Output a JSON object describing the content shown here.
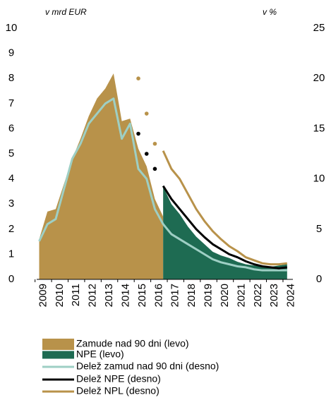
{
  "chart_data": {
    "type": "area-line",
    "y_label": "v mrd EUR",
    "y2_label": "v %",
    "x": [
      2008.75,
      2009.25,
      2009.75,
      2010.25,
      2010.75,
      2011.25,
      2011.75,
      2012.25,
      2012.75,
      2013.25,
      2013.75,
      2014.25,
      2014.75,
      2015.25,
      2015.75,
      2016.25,
      2016.75,
      2017.25,
      2017.75,
      2018.25,
      2018.75,
      2019.25,
      2019.75,
      2020.25,
      2020.75,
      2021.25,
      2021.75,
      2022.25,
      2022.75,
      2023.25,
      2023.75
    ],
    "xlim": [
      2008.6,
      2024.1
    ],
    "xticks": [
      2009,
      2010,
      2011,
      2012,
      2013,
      2014,
      2015,
      2016,
      2017,
      2018,
      2019,
      2020,
      2021,
      2022,
      2023,
      2024
    ],
    "ylim": [
      0,
      10
    ],
    "yticks": [
      0,
      1,
      2,
      3,
      4,
      5,
      6,
      7,
      8,
      9,
      10
    ],
    "y2lim": [
      0,
      25
    ],
    "y2ticks": [
      0,
      5,
      10,
      15,
      20,
      25
    ],
    "grid": false,
    "series": [
      {
        "name": "Zamude nad 90 dni (levo)",
        "kind": "area",
        "color": "#b8924a",
        "values": [
          1.6,
          2.7,
          2.8,
          3.8,
          4.8,
          5.6,
          6.5,
          7.2,
          7.6,
          8.2,
          6.3,
          6.4,
          5.2,
          4.5,
          3.2,
          2.5,
          null,
          null,
          null,
          null,
          null,
          null,
          null,
          null,
          null,
          null,
          null,
          null,
          null,
          null,
          null
        ]
      },
      {
        "name": "NPE (levo)",
        "kind": "area",
        "color": "#1e6b52",
        "values": [
          null,
          null,
          null,
          null,
          null,
          null,
          null,
          null,
          null,
          null,
          null,
          null,
          null,
          null,
          null,
          3.7,
          3.0,
          2.6,
          2.1,
          1.7,
          1.4,
          1.1,
          0.95,
          0.85,
          0.7,
          0.6,
          0.55,
          0.5,
          0.5,
          0.55,
          0.6
        ]
      },
      {
        "name": "Delež zamud nad 90 dni (desno)",
        "kind": "line",
        "axis": "y2",
        "color": "#9ecfc4",
        "values": [
          3.8,
          5.5,
          6.0,
          9.0,
          12.0,
          13.5,
          15.5,
          16.5,
          17.5,
          18.0,
          14.0,
          15.5,
          11.0,
          10.0,
          7.0,
          5.5,
          4.5,
          4.0,
          3.5,
          3.0,
          2.5,
          2.0,
          1.7,
          1.5,
          1.3,
          1.2,
          1.0,
          0.9,
          0.9,
          0.9,
          0.9
        ]
      },
      {
        "name": "Delež NPE (desno)",
        "kind": "line",
        "axis": "y2",
        "color": "#000000",
        "dotted_until": 2015.75,
        "values": [
          null,
          null,
          null,
          null,
          null,
          null,
          null,
          null,
          null,
          null,
          null,
          null,
          14.5,
          12.5,
          11.0,
          9.3,
          8.0,
          7.0,
          6.0,
          5.0,
          4.2,
          3.5,
          3.0,
          2.5,
          2.2,
          1.8,
          1.5,
          1.3,
          1.2,
          1.1,
          1.2
        ]
      },
      {
        "name": "Delež NPL (desno)",
        "kind": "line",
        "axis": "y2",
        "color": "#b8924a",
        "dotted_until": 2015.75,
        "values": [
          null,
          null,
          null,
          null,
          null,
          null,
          null,
          null,
          null,
          null,
          null,
          null,
          20.0,
          16.5,
          13.5,
          12.8,
          11.0,
          10.0,
          8.5,
          7.0,
          5.8,
          4.8,
          4.0,
          3.3,
          2.8,
          2.2,
          1.9,
          1.6,
          1.5,
          1.5,
          1.6
        ]
      }
    ]
  }
}
